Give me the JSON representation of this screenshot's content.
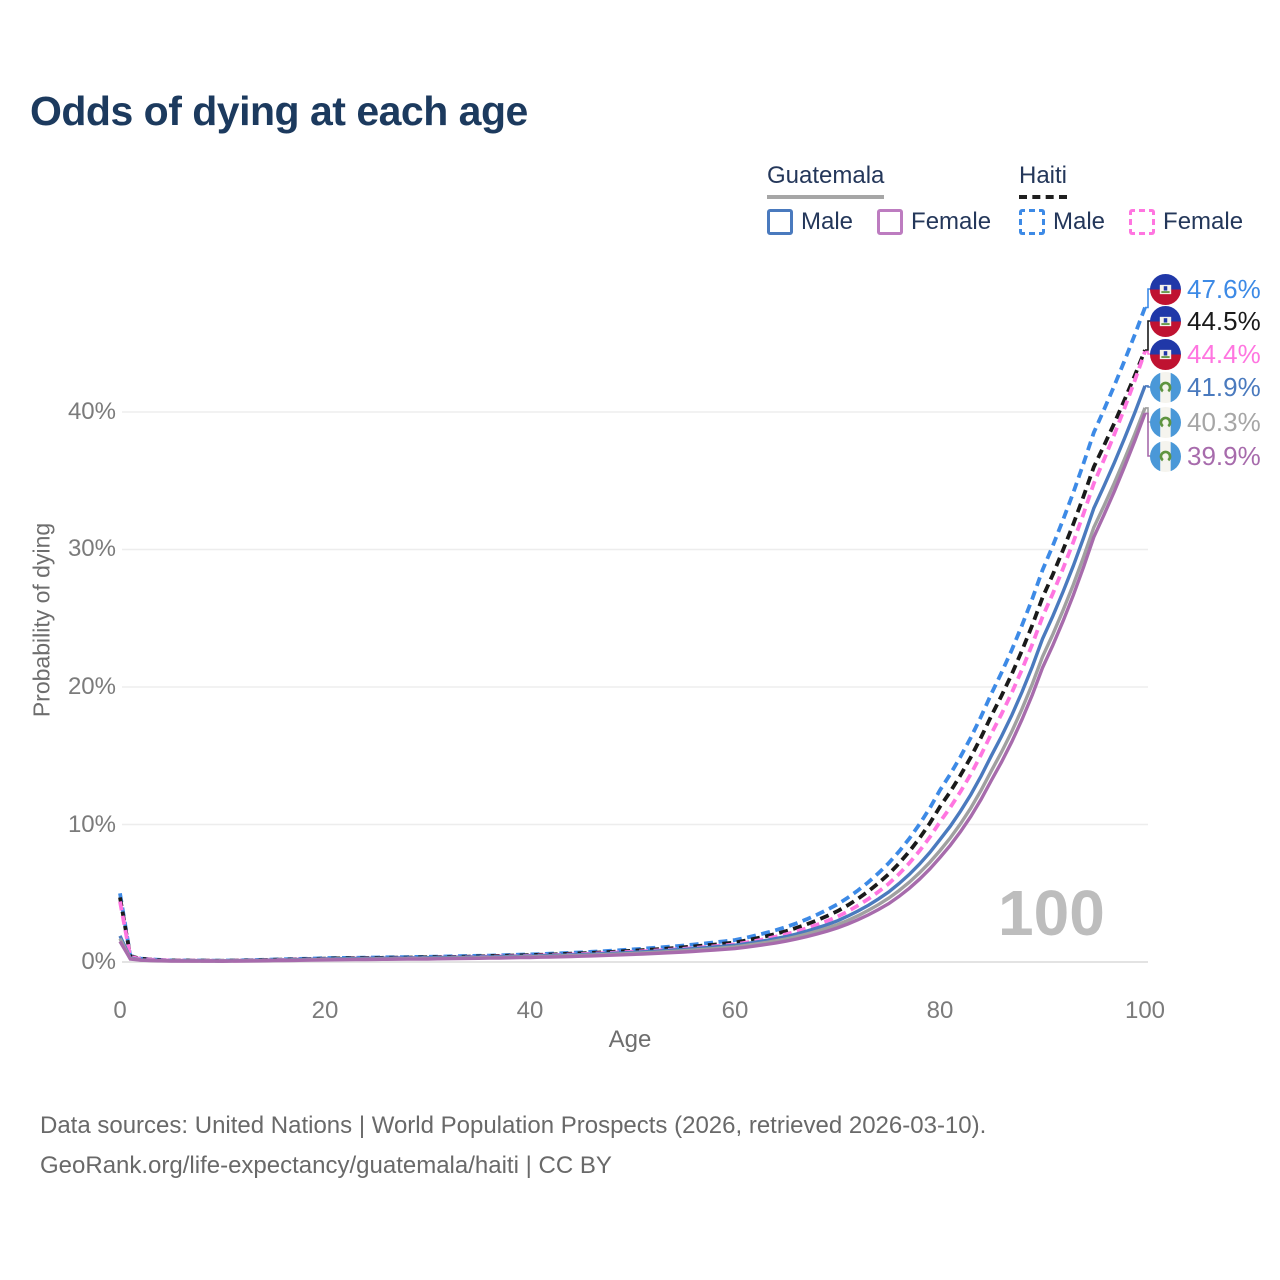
{
  "title": "Odds of dying at each age",
  "legend": {
    "groups": [
      {
        "country": "Guatemala",
        "line_style": "solid",
        "underline_color": "#a6a6a6",
        "items": [
          {
            "label": "Male",
            "color": "#4a7abe"
          },
          {
            "label": "Female",
            "color": "#bd7cc0"
          }
        ]
      },
      {
        "country": "Haiti",
        "line_style": "dashed",
        "underline_color": "#1f1f1f",
        "items": [
          {
            "label": "Male",
            "color": "#3d8ae6"
          },
          {
            "label": "Female",
            "color": "#ff75e0"
          }
        ]
      }
    ]
  },
  "chart_data": {
    "type": "line",
    "title": "Odds of dying at each age",
    "xlabel": "Age",
    "ylabel": "Probability of dying",
    "xlim": [
      0,
      100
    ],
    "ylim_pct": [
      0,
      48
    ],
    "x_ticks": [
      "0",
      "20",
      "40",
      "60",
      "80",
      "100"
    ],
    "y_ticks": [
      "0%",
      "10%",
      "20%",
      "30%",
      "40%"
    ],
    "grid": "horizontal",
    "hover_age_indicator": "100",
    "x": [
      0,
      1,
      2,
      5,
      10,
      15,
      20,
      25,
      30,
      35,
      40,
      45,
      50,
      55,
      60,
      65,
      70,
      75,
      80,
      85,
      90,
      95,
      100
    ],
    "series": [
      {
        "name": "Haiti Male",
        "country": "Haiti",
        "sex": "Male",
        "style": "dashed",
        "color": "#3d8ae6",
        "end_label": "47.6%",
        "values": [
          5.0,
          0.45,
          0.25,
          0.12,
          0.1,
          0.18,
          0.28,
          0.33,
          0.38,
          0.45,
          0.55,
          0.7,
          0.92,
          1.2,
          1.6,
          2.55,
          4.2,
          7.2,
          12.5,
          19.5,
          28.5,
          38.5,
          47.6
        ]
      },
      {
        "name": "Haiti Combined",
        "country": "Haiti",
        "sex": "Both",
        "style": "dashed",
        "color": "#1a1a1a",
        "end_label": "44.5%",
        "values": [
          4.7,
          0.42,
          0.23,
          0.11,
          0.09,
          0.16,
          0.25,
          0.3,
          0.34,
          0.41,
          0.5,
          0.63,
          0.82,
          1.07,
          1.42,
          2.25,
          3.7,
          6.4,
          11.3,
          17.9,
          26.5,
          36.0,
          44.5
        ]
      },
      {
        "name": "Haiti Female",
        "country": "Haiti",
        "sex": "Female",
        "style": "dashed",
        "color": "#ff75e0",
        "end_label": "44.4%",
        "values": [
          4.4,
          0.38,
          0.21,
          0.1,
          0.08,
          0.14,
          0.21,
          0.26,
          0.3,
          0.37,
          0.45,
          0.57,
          0.74,
          0.96,
          1.28,
          2.02,
          3.3,
          5.7,
          10.2,
          16.6,
          25.1,
          34.8,
          44.4
        ]
      },
      {
        "name": "Guatemala Male",
        "country": "Guatemala",
        "sex": "Male",
        "style": "solid",
        "color": "#4a7abe",
        "end_label": "41.9%",
        "values": [
          1.9,
          0.28,
          0.16,
          0.09,
          0.08,
          0.14,
          0.22,
          0.27,
          0.31,
          0.36,
          0.43,
          0.54,
          0.7,
          0.92,
          1.22,
          1.85,
          3.0,
          5.1,
          8.9,
          15.0,
          23.5,
          33.0,
          41.9
        ]
      },
      {
        "name": "Guatemala Combined",
        "country": "Guatemala",
        "sex": "Both",
        "style": "solid",
        "color": "#a0a0a0",
        "end_label": "40.3%",
        "values": [
          1.7,
          0.25,
          0.14,
          0.08,
          0.07,
          0.12,
          0.18,
          0.22,
          0.26,
          0.31,
          0.38,
          0.48,
          0.62,
          0.82,
          1.1,
          1.68,
          2.72,
          4.65,
          8.1,
          13.9,
          22.2,
          31.6,
          40.3
        ]
      },
      {
        "name": "Guatemala Female",
        "country": "Guatemala",
        "sex": "Female",
        "style": "solid",
        "color": "#a76bac",
        "end_label": "39.9%",
        "values": [
          1.5,
          0.22,
          0.13,
          0.07,
          0.06,
          0.1,
          0.15,
          0.19,
          0.22,
          0.27,
          0.33,
          0.42,
          0.55,
          0.73,
          0.98,
          1.52,
          2.48,
          4.25,
          7.6,
          13.2,
          21.4,
          30.9,
          39.9
        ]
      }
    ]
  },
  "end_labels": [
    {
      "flag": "haiti",
      "value": "47.6%",
      "color": "#3d8ae6",
      "series": "Haiti Male"
    },
    {
      "flag": "haiti",
      "value": "44.5%",
      "color": "#1a1a1a",
      "series": "Haiti Combined"
    },
    {
      "flag": "haiti",
      "value": "44.4%",
      "color": "#ff75e0",
      "series": "Haiti Female"
    },
    {
      "flag": "guatemala",
      "value": "41.9%",
      "color": "#4a7abe",
      "series": "Guatemala Male"
    },
    {
      "flag": "guatemala",
      "value": "40.3%",
      "color": "#a6a6a6",
      "series": "Guatemala Combined"
    },
    {
      "flag": "guatemala",
      "value": "39.9%",
      "color": "#a76bac",
      "series": "Guatemala Female"
    }
  ],
  "footer": {
    "line1": "Data sources: United Nations | World Population Prospects (2026, retrieved 2026-03-10).",
    "line2": "GeoRank.org/life-expectancy/guatemala/haiti | CC BY"
  },
  "flag_colors": {
    "haiti_blue": "#2038a8",
    "haiti_red": "#bf1231",
    "guatemala_blue": "#4a98d8",
    "guatemala_green": "#5f9440"
  }
}
